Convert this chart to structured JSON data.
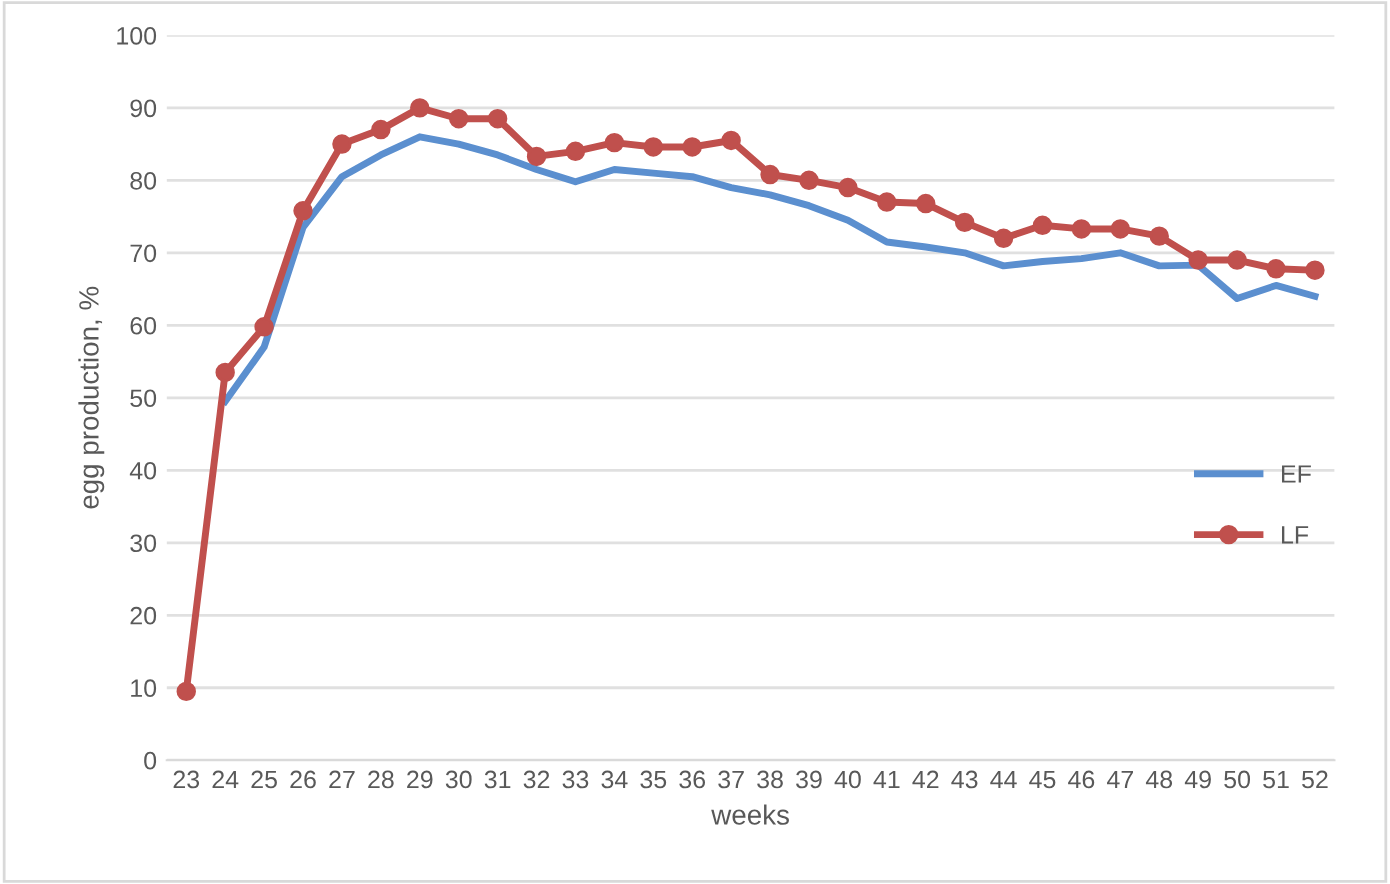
{
  "chart_data": {
    "type": "line",
    "xlabel": "weeks",
    "ylabel": "egg production, %",
    "categories": [
      "23",
      "24",
      "25",
      "26",
      "27",
      "28",
      "29",
      "30",
      "31",
      "32",
      "33",
      "34",
      "35",
      "36",
      "37",
      "38",
      "39",
      "40",
      "41",
      "42",
      "43",
      "44",
      "45",
      "46",
      "47",
      "48",
      "49",
      "50",
      "51",
      "52"
    ],
    "series": [
      {
        "name": "EF",
        "color": "#5b8fcf",
        "marker": "none",
        "values": [
          null,
          49.5,
          57,
          73.5,
          80.5,
          83.5,
          86,
          85,
          83.5,
          81.5,
          79.8,
          81.5,
          81,
          80.5,
          79,
          78,
          76.5,
          74.5,
          71.5,
          70.8,
          70,
          68.2,
          68.8,
          69.2,
          70,
          68.2,
          68.3,
          63.7,
          65.5,
          64
        ]
      },
      {
        "name": "LF",
        "color": "#c0504d",
        "marker": "circle",
        "values": [
          9.5,
          53.5,
          59.8,
          75.8,
          85,
          87,
          90,
          88.5,
          88.5,
          83.3,
          84,
          85.2,
          84.6,
          84.6,
          85.5,
          80.8,
          80,
          79,
          77,
          76.8,
          74.2,
          72,
          73.8,
          73.3,
          73.3,
          72.3,
          69,
          69,
          67.8,
          67.6
        ]
      }
    ],
    "ylim": [
      0,
      100
    ],
    "yticks": [
      0,
      10,
      20,
      30,
      40,
      50,
      60,
      70,
      80,
      90,
      100
    ],
    "grid": "y",
    "legend": "center right"
  }
}
